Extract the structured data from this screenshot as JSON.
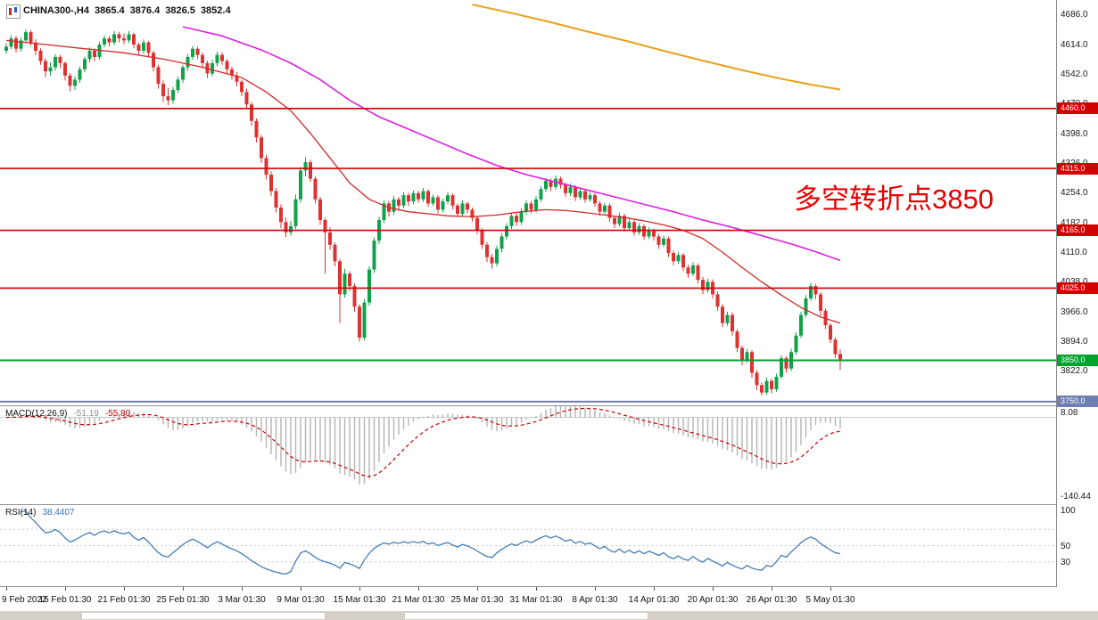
{
  "header": {
    "symbol_period": "CHINA300-,H4",
    "open": "3865.4",
    "high": "3876.4",
    "low": "3826.5",
    "close": "3852.4"
  },
  "annotation": {
    "text": "多空转折点3850",
    "color": "#e60000"
  },
  "colors": {
    "candle_up": "#12a14b",
    "candle_down": "#e03131",
    "macd_hist": "#b4b4b4",
    "macd_signal": "#c80000",
    "macd_value_main": "#8c8c8c",
    "rsi_line": "#3573b5",
    "axis_text": "#1a1a1a"
  },
  "indicators": {
    "macd": {
      "name": "MACD(12,26,9)",
      "value_main": "-51.19",
      "value_signal": "-55.80",
      "axis_max_label": "8.08",
      "axis_min_label": "-140.44",
      "params": [
        12,
        26,
        9
      ]
    },
    "rsi": {
      "name": "RSI(14)",
      "value": "38.4407",
      "period": 14,
      "axis_labels": [
        100,
        50,
        30
      ],
      "level_lines": [
        70,
        50,
        30
      ]
    }
  },
  "chart_data": {
    "type": "candlestick",
    "title": "CHINA300-,H4",
    "timeframe": "H4",
    "x_axis": {
      "labels": [
        "9 Feb 2022",
        "15 Feb 01:30",
        "21 Feb 01:30",
        "25 Feb 01:30",
        "3 Mar 01:30",
        "9 Mar 01:30",
        "15 Mar 01:30",
        "21 Mar 01:30",
        "25 Mar 01:30",
        "31 Mar 01:30",
        "8 Apr 01:30",
        "14 Apr 01:30",
        "20 Apr 01:30",
        "26 Apr 01:30",
        "5 May 01:30"
      ],
      "candles_per_label": 12
    },
    "y_axis": {
      "min": 3741,
      "max": 4723,
      "ticks": [
        4686,
        4614,
        4542,
        4470,
        4398,
        4326,
        4254,
        4182,
        4110,
        4038,
        3966,
        3894,
        3822,
        3750
      ]
    },
    "levels": [
      {
        "price": 4460,
        "label": "4460.0",
        "color": "#d20000",
        "width": 1.6
      },
      {
        "price": 4315,
        "label": "4315.0",
        "color": "#d20000",
        "width": 1.6
      },
      {
        "price": 4165,
        "label": "4165.0",
        "color": "#d20000",
        "width": 1.6
      },
      {
        "price": 4025,
        "label": "4025.0",
        "color": "#d20000",
        "width": 1.6
      },
      {
        "price": 3850,
        "label": "3850.0",
        "color": "#00a32e",
        "width": 2
      },
      {
        "price": 3750,
        "label": "3750.0",
        "color": "#6f7fb2",
        "width": 2
      }
    ],
    "moving_averages": [
      {
        "name": "ma-fast",
        "color": "#d22828",
        "width": 1.3,
        "points": [
          [
            0,
            4625
          ],
          [
            8,
            4615
          ],
          [
            16,
            4605
          ],
          [
            24,
            4595
          ],
          [
            32,
            4580
          ],
          [
            40,
            4560
          ],
          [
            48,
            4535
          ],
          [
            53,
            4500
          ],
          [
            58,
            4455
          ],
          [
            62,
            4400
          ],
          [
            66,
            4340
          ],
          [
            70,
            4280
          ],
          [
            74,
            4240
          ],
          [
            78,
            4220
          ],
          [
            82,
            4210
          ],
          [
            86,
            4205
          ],
          [
            90,
            4200
          ],
          [
            95,
            4198
          ],
          [
            100,
            4202
          ],
          [
            105,
            4210
          ],
          [
            110,
            4215
          ],
          [
            114,
            4213
          ],
          [
            118,
            4208
          ],
          [
            122,
            4202
          ],
          [
            126,
            4196
          ],
          [
            130,
            4188
          ],
          [
            134,
            4178
          ],
          [
            138,
            4165
          ],
          [
            142,
            4145
          ],
          [
            146,
            4112
          ],
          [
            150,
            4075
          ],
          [
            154,
            4040
          ],
          [
            158,
            4008
          ],
          [
            162,
            3978
          ],
          [
            166,
            3955
          ],
          [
            170,
            3940
          ]
        ]
      },
      {
        "name": "ma-slow",
        "color": "#df20df",
        "width": 1.6,
        "points": [
          [
            36,
            4658
          ],
          [
            44,
            4636
          ],
          [
            52,
            4602
          ],
          [
            58,
            4570
          ],
          [
            64,
            4530
          ],
          [
            70,
            4480
          ],
          [
            76,
            4440
          ],
          [
            82,
            4410
          ],
          [
            88,
            4380
          ],
          [
            94,
            4350
          ],
          [
            100,
            4322
          ],
          [
            106,
            4300
          ],
          [
            112,
            4282
          ],
          [
            118,
            4264
          ],
          [
            124,
            4246
          ],
          [
            130,
            4228
          ],
          [
            136,
            4210
          ],
          [
            142,
            4190
          ],
          [
            148,
            4172
          ],
          [
            154,
            4152
          ],
          [
            160,
            4132
          ],
          [
            165,
            4113
          ],
          [
            170,
            4092
          ]
        ]
      },
      {
        "name": "ma-long",
        "color": "#e8a21c",
        "width": 2,
        "points": [
          [
            95,
            4712
          ],
          [
            102,
            4694
          ],
          [
            110,
            4672
          ],
          [
            118,
            4648
          ],
          [
            126,
            4625
          ],
          [
            134,
            4600
          ],
          [
            142,
            4576
          ],
          [
            150,
            4553
          ],
          [
            158,
            4532
          ],
          [
            164,
            4518
          ],
          [
            170,
            4506
          ]
        ]
      }
    ],
    "candles_ohlc": [
      [
        4600,
        4618,
        4592,
        4610
      ],
      [
        4610,
        4638,
        4604,
        4630
      ],
      [
        4630,
        4636,
        4596,
        4605
      ],
      [
        4605,
        4632,
        4598,
        4625
      ],
      [
        4625,
        4652,
        4618,
        4645
      ],
      [
        4645,
        4650,
        4612,
        4620
      ],
      [
        4620,
        4628,
        4590,
        4600
      ],
      [
        4600,
        4606,
        4566,
        4575
      ],
      [
        4575,
        4582,
        4536,
        4550
      ],
      [
        4550,
        4572,
        4540,
        4560
      ],
      [
        4560,
        4592,
        4552,
        4585
      ],
      [
        4585,
        4590,
        4558,
        4570
      ],
      [
        4570,
        4574,
        4528,
        4540
      ],
      [
        4540,
        4546,
        4502,
        4515
      ],
      [
        4515,
        4538,
        4505,
        4530
      ],
      [
        4530,
        4562,
        4522,
        4555
      ],
      [
        4555,
        4586,
        4548,
        4580
      ],
      [
        4580,
        4608,
        4572,
        4600
      ],
      [
        4600,
        4606,
        4574,
        4585
      ],
      [
        4585,
        4622,
        4578,
        4615
      ],
      [
        4615,
        4638,
        4608,
        4630
      ],
      [
        4630,
        4636,
        4610,
        4620
      ],
      [
        4620,
        4648,
        4614,
        4640
      ],
      [
        4640,
        4646,
        4620,
        4630
      ],
      [
        4630,
        4642,
        4616,
        4625
      ],
      [
        4625,
        4648,
        4618,
        4640
      ],
      [
        4640,
        4644,
        4606,
        4615
      ],
      [
        4615,
        4620,
        4588,
        4600
      ],
      [
        4600,
        4628,
        4592,
        4620
      ],
      [
        4620,
        4624,
        4584,
        4595
      ],
      [
        4595,
        4600,
        4550,
        4560
      ],
      [
        4560,
        4566,
        4508,
        4520
      ],
      [
        4520,
        4528,
        4476,
        4490
      ],
      [
        4490,
        4510,
        4468,
        4480
      ],
      [
        4480,
        4512,
        4472,
        4505
      ],
      [
        4505,
        4538,
        4498,
        4530
      ],
      [
        4530,
        4566,
        4522,
        4560
      ],
      [
        4560,
        4592,
        4552,
        4585
      ],
      [
        4585,
        4612,
        4578,
        4605
      ],
      [
        4605,
        4610,
        4580,
        4590
      ],
      [
        4590,
        4596,
        4558,
        4570
      ],
      [
        4570,
        4576,
        4534,
        4545
      ],
      [
        4545,
        4578,
        4538,
        4570
      ],
      [
        4570,
        4598,
        4562,
        4590
      ],
      [
        4590,
        4596,
        4566,
        4575
      ],
      [
        4575,
        4580,
        4544,
        4555
      ],
      [
        4555,
        4562,
        4530,
        4540
      ],
      [
        4540,
        4548,
        4514,
        4525
      ],
      [
        4525,
        4530,
        4490,
        4500
      ],
      [
        4500,
        4508,
        4458,
        4470
      ],
      [
        4470,
        4476,
        4418,
        4430
      ],
      [
        4430,
        4436,
        4378,
        4390
      ],
      [
        4390,
        4396,
        4328,
        4340
      ],
      [
        4340,
        4348,
        4288,
        4300
      ],
      [
        4300,
        4308,
        4248,
        4260
      ],
      [
        4260,
        4268,
        4208,
        4220
      ],
      [
        4220,
        4228,
        4170,
        4185
      ],
      [
        4185,
        4196,
        4148,
        4160
      ],
      [
        4160,
        4188,
        4152,
        4175
      ],
      [
        4175,
        4252,
        4168,
        4240
      ],
      [
        4240,
        4318,
        4232,
        4310
      ],
      [
        4310,
        4342,
        4296,
        4330
      ],
      [
        4330,
        4336,
        4282,
        4290
      ],
      [
        4290,
        4296,
        4230,
        4240
      ],
      [
        4240,
        4246,
        4178,
        4190
      ],
      [
        4190,
        4196,
        4060,
        4160
      ],
      [
        4160,
        4172,
        4118,
        4130
      ],
      [
        4130,
        4136,
        4078,
        4090
      ],
      [
        4090,
        4096,
        3940,
        4010
      ],
      [
        4010,
        4072,
        4002,
        4060
      ],
      [
        4060,
        4066,
        4018,
        4030
      ],
      [
        4030,
        4036,
        3968,
        3980
      ],
      [
        3980,
        3986,
        3895,
        3905
      ],
      [
        3905,
        3998,
        3898,
        3990
      ],
      [
        3990,
        4078,
        3982,
        4070
      ],
      [
        4070,
        4148,
        4062,
        4140
      ],
      [
        4140,
        4198,
        4132,
        4190
      ],
      [
        4190,
        4238,
        4182,
        4230
      ],
      [
        4230,
        4236,
        4198,
        4210
      ],
      [
        4210,
        4248,
        4202,
        4240
      ],
      [
        4240,
        4246,
        4212,
        4225
      ],
      [
        4225,
        4258,
        4218,
        4250
      ],
      [
        4250,
        4256,
        4224,
        4235
      ],
      [
        4235,
        4262,
        4228,
        4255
      ],
      [
        4255,
        4260,
        4232,
        4240
      ],
      [
        4240,
        4268,
        4234,
        4260
      ],
      [
        4260,
        4264,
        4222,
        4230
      ],
      [
        4230,
        4252,
        4224,
        4245
      ],
      [
        4245,
        4250,
        4206,
        4215
      ],
      [
        4215,
        4242,
        4208,
        4235
      ],
      [
        4235,
        4258,
        4228,
        4250
      ],
      [
        4250,
        4254,
        4216,
        4225
      ],
      [
        4225,
        4230,
        4196,
        4205
      ],
      [
        4205,
        4238,
        4198,
        4230
      ],
      [
        4230,
        4234,
        4206,
        4215
      ],
      [
        4215,
        4220,
        4186,
        4195
      ],
      [
        4195,
        4200,
        4156,
        4165
      ],
      [
        4165,
        4170,
        4120,
        4130
      ],
      [
        4130,
        4136,
        4088,
        4100
      ],
      [
        4100,
        4108,
        4072,
        4085
      ],
      [
        4085,
        4128,
        4078,
        4120
      ],
      [
        4120,
        4158,
        4112,
        4150
      ],
      [
        4150,
        4182,
        4142,
        4175
      ],
      [
        4175,
        4208,
        4168,
        4200
      ],
      [
        4200,
        4206,
        4176,
        4185
      ],
      [
        4185,
        4218,
        4178,
        4210
      ],
      [
        4210,
        4238,
        4202,
        4230
      ],
      [
        4230,
        4236,
        4206,
        4215
      ],
      [
        4215,
        4248,
        4208,
        4240
      ],
      [
        4240,
        4272,
        4234,
        4265
      ],
      [
        4265,
        4292,
        4258,
        4285
      ],
      [
        4285,
        4290,
        4260,
        4270
      ],
      [
        4270,
        4298,
        4264,
        4290
      ],
      [
        4290,
        4295,
        4266,
        4275
      ],
      [
        4275,
        4280,
        4246,
        4255
      ],
      [
        4255,
        4278,
        4248,
        4270
      ],
      [
        4270,
        4275,
        4236,
        4245
      ],
      [
        4245,
        4268,
        4238,
        4260
      ],
      [
        4260,
        4265,
        4232,
        4240
      ],
      [
        4240,
        4258,
        4234,
        4250
      ],
      [
        4250,
        4255,
        4222,
        4230
      ],
      [
        4230,
        4236,
        4200,
        4210
      ],
      [
        4210,
        4232,
        4204,
        4225
      ],
      [
        4225,
        4230,
        4186,
        4195
      ],
      [
        4195,
        4200,
        4170,
        4180
      ],
      [
        4180,
        4208,
        4174,
        4200
      ],
      [
        4200,
        4205,
        4162,
        4170
      ],
      [
        4170,
        4192,
        4164,
        4185
      ],
      [
        4185,
        4190,
        4152,
        4160
      ],
      [
        4160,
        4182,
        4154,
        4175
      ],
      [
        4175,
        4180,
        4142,
        4150
      ],
      [
        4150,
        4172,
        4144,
        4165
      ],
      [
        4165,
        4170,
        4140,
        4150
      ],
      [
        4150,
        4156,
        4120,
        4130
      ],
      [
        4130,
        4152,
        4124,
        4145
      ],
      [
        4145,
        4150,
        4100,
        4110
      ],
      [
        4110,
        4116,
        4080,
        4090
      ],
      [
        4090,
        4112,
        4084,
        4105
      ],
      [
        4105,
        4110,
        4066,
        4075
      ],
      [
        4075,
        4082,
        4050,
        4060
      ],
      [
        4060,
        4088,
        4054,
        4080
      ],
      [
        4080,
        4085,
        4036,
        4045
      ],
      [
        4045,
        4052,
        4010,
        4020
      ],
      [
        4020,
        4048,
        4014,
        4040
      ],
      [
        4040,
        4046,
        4000,
        4010
      ],
      [
        4010,
        4016,
        3970,
        3980
      ],
      [
        3980,
        3986,
        3930,
        3940
      ],
      [
        3940,
        3968,
        3934,
        3960
      ],
      [
        3960,
        3966,
        3910,
        3920
      ],
      [
        3920,
        3926,
        3870,
        3880
      ],
      [
        3880,
        3886,
        3838,
        3850
      ],
      [
        3850,
        3878,
        3844,
        3870
      ],
      [
        3870,
        3875,
        3808,
        3820
      ],
      [
        3820,
        3826,
        3778,
        3790
      ],
      [
        3790,
        3796,
        3765,
        3772
      ],
      [
        3772,
        3808,
        3766,
        3800
      ],
      [
        3800,
        3806,
        3770,
        3780
      ],
      [
        3780,
        3818,
        3774,
        3810
      ],
      [
        3810,
        3862,
        3804,
        3855
      ],
      [
        3855,
        3860,
        3820,
        3830
      ],
      [
        3830,
        3878,
        3824,
        3870
      ],
      [
        3870,
        3918,
        3864,
        3910
      ],
      [
        3910,
        3968,
        3904,
        3960
      ],
      [
        3960,
        4008,
        3954,
        4000
      ],
      [
        4000,
        4038,
        3994,
        4030
      ],
      [
        4030,
        4035,
        3998,
        4010
      ],
      [
        4010,
        4015,
        3958,
        3970
      ],
      [
        3970,
        3976,
        3926,
        3935
      ],
      [
        3935,
        3940,
        3892,
        3900
      ],
      [
        3900,
        3906,
        3856,
        3865
      ],
      [
        3865.4,
        3876.4,
        3826.5,
        3852.4
      ]
    ],
    "macd_axis": {
      "plot_max": 20,
      "plot_min": -155
    }
  }
}
